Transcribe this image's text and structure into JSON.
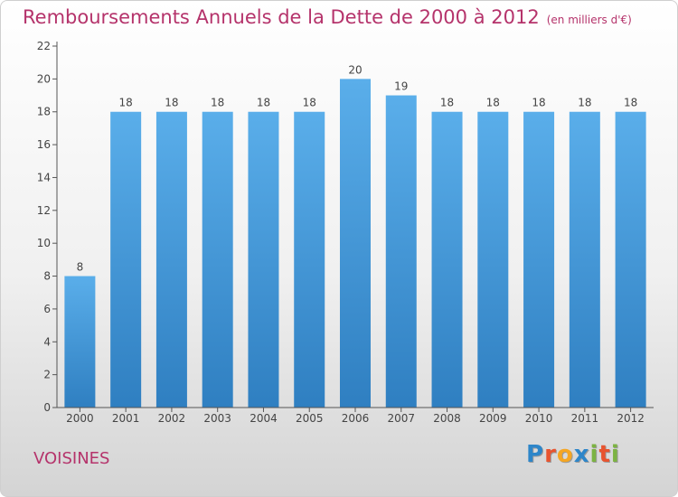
{
  "chart_data": {
    "type": "bar",
    "title": "Remboursements Annuels de la Dette de 2000 à 2012",
    "subtitle": "(en milliers d'€)",
    "categories": [
      "2000",
      "2001",
      "2002",
      "2003",
      "2004",
      "2005",
      "2006",
      "2007",
      "2008",
      "2009",
      "2010",
      "2011",
      "2012"
    ],
    "values": [
      8,
      18,
      18,
      18,
      18,
      18,
      20,
      19,
      18,
      18,
      18,
      18,
      18
    ],
    "ylim": [
      0,
      22
    ],
    "yticks": [
      0,
      2,
      4,
      6,
      8,
      10,
      12,
      14,
      16,
      18,
      20,
      22
    ],
    "xlabel": "",
    "ylabel": "",
    "grid": false,
    "bar_color": "#3f8fd4"
  },
  "commune": "VOISINES",
  "logo": {
    "letters": [
      "P",
      "r",
      "o",
      "x",
      "i",
      "t",
      "i"
    ],
    "colors": [
      "#2e86c9",
      "#e8542f",
      "#f5a623",
      "#2e86c9",
      "#7cb342",
      "#e8542f",
      "#7cb342"
    ]
  },
  "colors": {
    "title": "#b5336b",
    "axis": "#444444"
  }
}
